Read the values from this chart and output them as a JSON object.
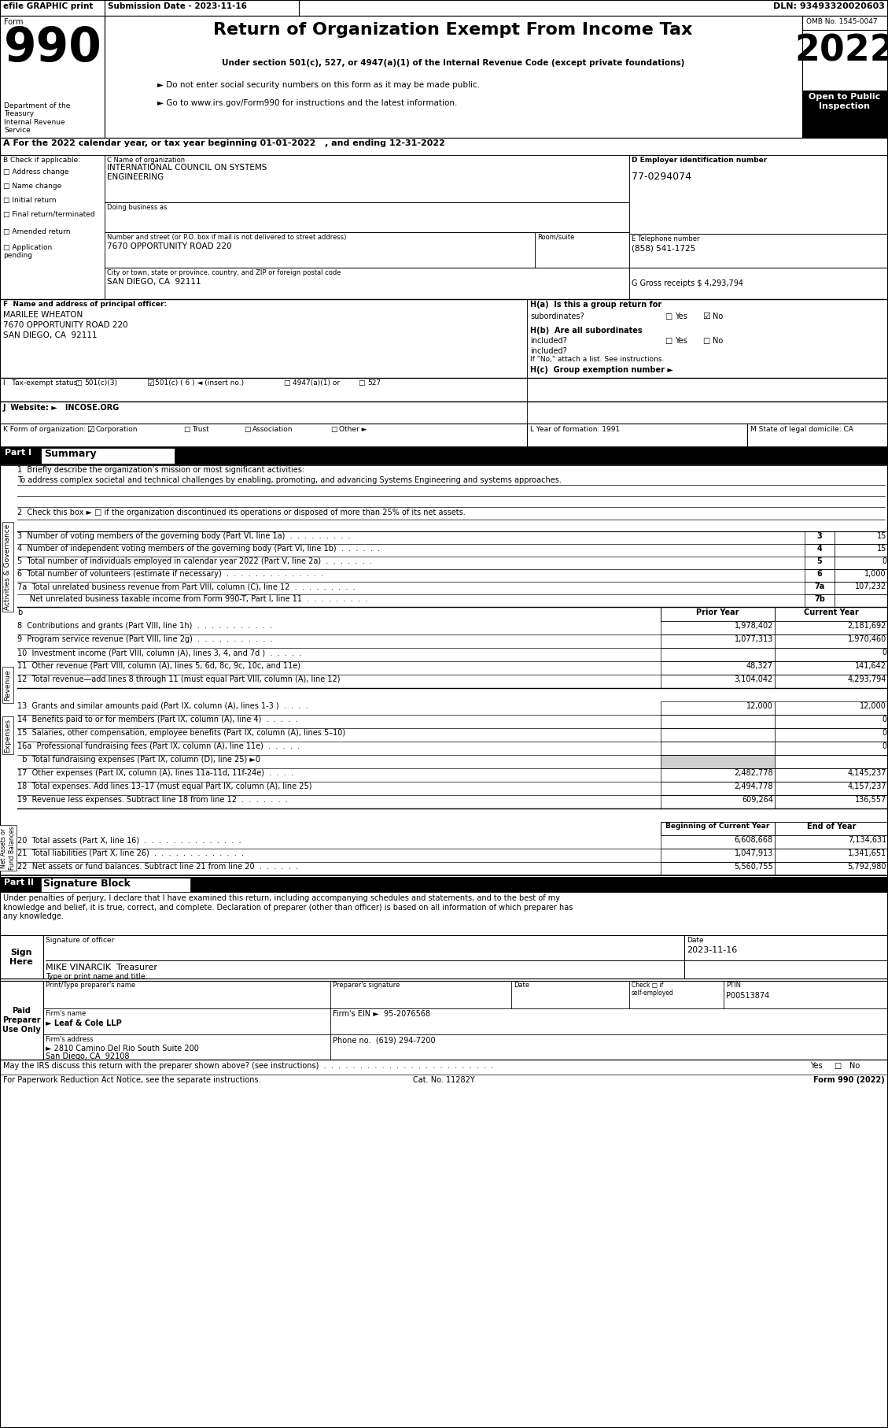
{
  "header_top_left": "efile GRAPHIC print",
  "header_submission": "Submission Date - 2023-11-16",
  "header_dln": "DLN: 93493320020603",
  "form_number": "990",
  "form_label": "Form",
  "title": "Return of Organization Exempt From Income Tax",
  "subtitle1": "Under section 501(c), 527, or 4947(a)(1) of the Internal Revenue Code (except private foundations)",
  "subtitle2": "► Do not enter social security numbers on this form as it may be made public.",
  "subtitle3": "► Go to www.irs.gov/Form990 for instructions and the latest information.",
  "dept_label": "Department of the\nTreasury\nInternal Revenue\nService",
  "omb": "OMB No. 1545-0047",
  "year": "2022",
  "open_to_public": "Open to Public\nInspection",
  "tax_year_line": "A For the 2022 calendar year, or tax year beginning 01-01-2022   , and ending 12-31-2022",
  "b_label": "B Check if applicable:",
  "checkboxes_b": [
    "Address change",
    "Name change",
    "Initial return",
    "Final return/terminated",
    "Amended return",
    "Application\npending"
  ],
  "c_label": "C Name of organization",
  "org_name_1": "INTERNATIONAL COUNCIL ON SYSTEMS",
  "org_name_2": "ENGINEERING",
  "dba_label": "Doing business as",
  "address_label": "Number and street (or P.O. box if mail is not delivered to street address)",
  "address_value": "7670 OPPORTUNITY ROAD 220",
  "room_label": "Room/suite",
  "city_label": "City or town, state or province, country, and ZIP or foreign postal code",
  "city_value": "SAN DIEGO, CA  92111",
  "d_label": "D Employer identification number",
  "ein": "77-0294074",
  "e_label": "E Telephone number",
  "phone": "(858) 541-1725",
  "g_label": "G Gross receipts $ 4,293,794",
  "f_label": "F  Name and address of principal officer:",
  "officer_name": "MARILEE WHEATON",
  "officer_addr1": "7670 OPPORTUNITY ROAD 220",
  "officer_addr2": "SAN DIEGO, CA  92111",
  "ha_label": "H(a)  Is this a group return for",
  "ha_sub": "subordinates?",
  "hb_label": "H(b)  Are all subordinates",
  "hb_sub": "included?",
  "hb_note": "If \"No,\" attach a list. See instructions.",
  "hc_label": "H(c)  Group exemption number ►",
  "i_label": "I   Tax-exempt status:",
  "i_501c3": "501(c)(3)",
  "i_501c6": "501(c) ( 6 ) ◄ (insert no.)",
  "i_4947": "4947(a)(1) or",
  "i_527": "527",
  "j_label": "J  Website: ►   INCOSE.ORG",
  "k_label": "K Form of organization:",
  "k_corp": "Corporation",
  "k_trust": "Trust",
  "k_assoc": "Association",
  "k_other": "Other ►",
  "l_label": "L Year of formation: 1991",
  "m_label": "M State of legal domicile: CA",
  "part1_label": "Part I",
  "part1_title": "Summary",
  "line1_label": "1  Briefly describe the organization’s mission or most significant activities:",
  "mission": "To address complex societal and technical challenges by enabling, promoting, and advancing Systems Engineering and systems approaches.",
  "line2": "2  Check this box ► □ if the organization discontinued its operations or disposed of more than 25% of its net assets.",
  "line3": "3  Number of voting members of the governing body (Part VI, line 1a)  .  .  .  .  .  .  .  .  .",
  "line3_num": "3",
  "line3_val": "15",
  "line4": "4  Number of independent voting members of the governing body (Part VI, line 1b)  .  .  .  .  .  .",
  "line4_num": "4",
  "line4_val": "15",
  "line5": "5  Total number of individuals employed in calendar year 2022 (Part V, line 2a)  .  .  .  .  .  .  .",
  "line5_num": "5",
  "line5_val": "0",
  "line6": "6  Total number of volunteers (estimate if necessary)  .  .  .  .  .  .  .  .  .  .  .  .  .  .",
  "line6_num": "6",
  "line6_val": "1,000",
  "line7a": "7a  Total unrelated business revenue from Part VIII, column (C), line 12  .  .  .  .  .  .  .  .  .",
  "line7a_num": "7a",
  "line7a_val": "107,232",
  "line7b": "     Net unrelated business taxable income from Form 990-T, Part I, line 11  .  .  .  .  .  .  .  .  .",
  "line7b_num": "7b",
  "col_prior": "Prior Year",
  "col_current": "Current Year",
  "line8": "8  Contributions and grants (Part VIII, line 1h)  .  .  .  .  .  .  .  .  .  .  .",
  "line8_prior": "1,978,402",
  "line8_current": "2,181,692",
  "line9": "9  Program service revenue (Part VIII, line 2g)  .  .  .  .  .  .  .  .  .  .  .",
  "line9_prior": "1,077,313",
  "line9_current": "1,970,460",
  "line10": "10  Investment income (Part VIII, column (A), lines 3, 4, and 7d )  .  .  .  .  .",
  "line10_prior": "",
  "line10_current": "0",
  "line11": "11  Other revenue (Part VIII, column (A), lines 5, 6d, 8c, 9c, 10c, and 11e)",
  "line11_prior": "48,327",
  "line11_current": "141,642",
  "line12": "12  Total revenue—add lines 8 through 11 (must equal Part VIII, column (A), line 12)",
  "line12_prior": "3,104,042",
  "line12_current": "4,293,794",
  "line13": "13  Grants and similar amounts paid (Part IX, column (A), lines 1-3 )  .  .  .  .",
  "line13_prior": "12,000",
  "line13_current": "12,000",
  "line14": "14  Benefits paid to or for members (Part IX, column (A), line 4)  .  .  .  .  .",
  "line14_prior": "",
  "line14_current": "0",
  "line15": "15  Salaries, other compensation, employee benefits (Part IX, column (A), lines 5–10)",
  "line15_prior": "",
  "line15_current": "0",
  "line16a": "16a  Professional fundraising fees (Part IX, column (A), line 11e)  .  .  .  .  .",
  "line16a_prior": "",
  "line16a_current": "0",
  "line16b": "  b  Total fundraising expenses (Part IX, column (D), line 25) ►0",
  "line17": "17  Other expenses (Part IX, column (A), lines 11a-11d, 11f-24e)  .  .  .  .",
  "line17_prior": "2,482,778",
  "line17_current": "4,145,237",
  "line18": "18  Total expenses. Add lines 13–17 (must equal Part IX, column (A), line 25)",
  "line18_prior": "2,494,778",
  "line18_current": "4,157,237",
  "line19": "19  Revenue less expenses. Subtract line 18 from line 12  .  .  .  .  .  .  .",
  "line19_prior": "609,264",
  "line19_current": "136,557",
  "col_beg": "Beginning of Current Year",
  "col_end": "End of Year",
  "line20": "20  Total assets (Part X, line 16)  .  .  .  .  .  .  .  .  .  .  .  .  .  .",
  "line20_beg": "6,608,668",
  "line20_end": "7,134,631",
  "line21": "21  Total liabilities (Part X, line 26)  .  .  .  .  .  .  .  .  .  .  .  .  .",
  "line21_beg": "1,047,913",
  "line21_end": "1,341,651",
  "line22": "22  Net assets or fund balances. Subtract line 21 from line 20  .  .  .  .  .  .",
  "line22_beg": "5,560,755",
  "line22_end": "5,792,980",
  "part2_label": "Part II",
  "part2_title": "Signature Block",
  "sig_penalty": "Under penalties of perjury, I declare that I have examined this return, including accompanying schedules and statements, and to the best of my\nknowledge and belief, it is true, correct, and complete. Declaration of preparer (other than officer) is based on all information of which preparer has\nany knowledge.",
  "sig_label": "Signature of officer",
  "sig_date": "2023-11-16",
  "sig_date_label": "Date",
  "sign_here": "Sign\nHere",
  "officer_title": "MIKE VINARCIK  Treasurer",
  "officer_type_label": "Type or print name and title",
  "paid_label": "Paid\nPreparer\nUse Only",
  "preparer_name_label": "Print/Type preparer's name",
  "preparer_sig_label": "Preparer's signature",
  "preparer_date_label": "Date",
  "preparer_check_label": "Check □ if\nself-employed",
  "ptin_label": "PTIN",
  "ptin_value": "P00513874",
  "firm_name_label": "Firm's name",
  "firm_name": "► Leaf & Cole LLP",
  "firm_ein_label": "Firm's EIN ►",
  "firm_ein": "95-2076568",
  "firm_addr_label": "Firm's address",
  "firm_addr": "► 2810 Camino Del Rio South Suite 200",
  "firm_city": "San Diego, CA  92108",
  "phone_label": "Phone no.",
  "phone_value": "(619) 294-7200",
  "irs_discuss": "May the IRS discuss this return with the preparer shown above? (see instructions)  .  .  .  .  .  .  .  .  .  .  .  .  .  .  .  .  .  .  .  .  .  .  .  .",
  "irs_yes": "Yes",
  "irs_no": "No",
  "footer_privacy": "For Paperwork Reduction Act Notice, see the separate instructions.",
  "footer_cat": "Cat. No. 11282Y",
  "footer_form": "Form 990 (2022)"
}
